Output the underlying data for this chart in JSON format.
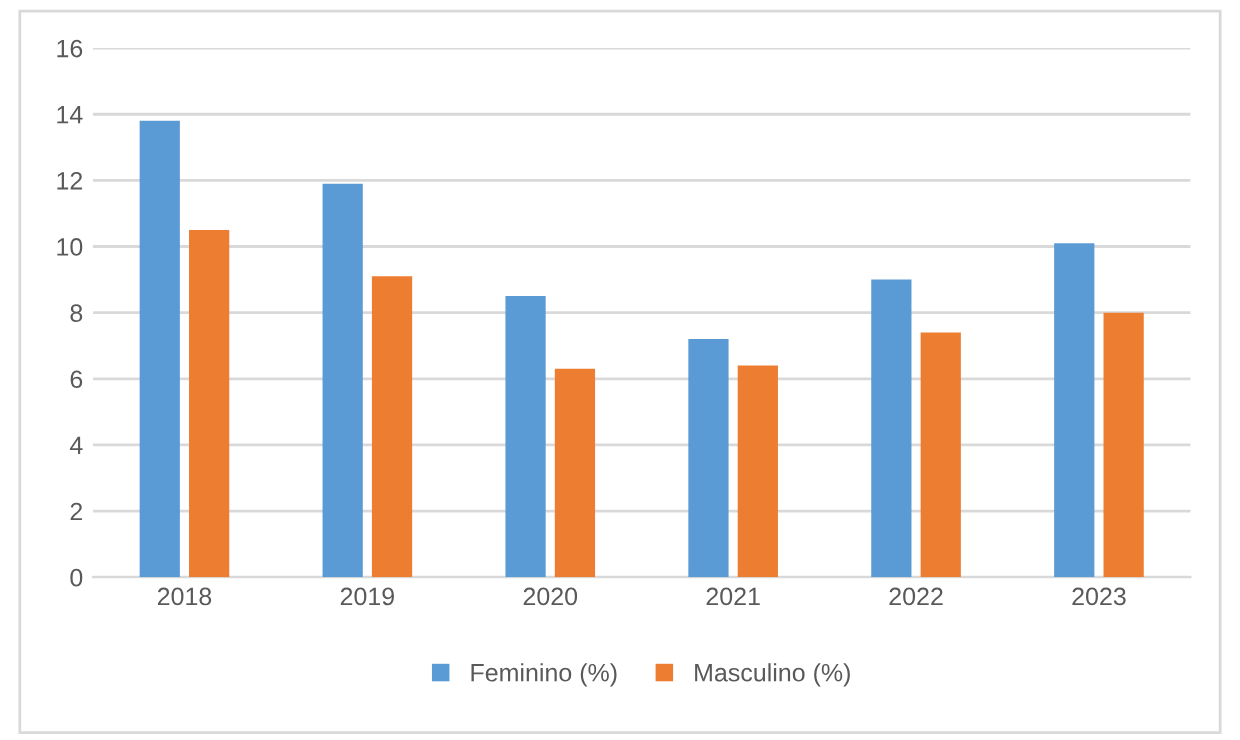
{
  "chart_data": {
    "type": "bar",
    "categories": [
      "2018",
      "2019",
      "2020",
      "2021",
      "2022",
      "2023"
    ],
    "series": [
      {
        "name": "Feminino (%)",
        "color": "#5b9bd5",
        "values": [
          13.8,
          11.9,
          8.5,
          7.2,
          9.0,
          10.1
        ]
      },
      {
        "name": "Masculino (%)",
        "color": "#ed7d31",
        "values": [
          10.5,
          9.1,
          6.3,
          6.4,
          7.4,
          8.0
        ]
      }
    ],
    "ylim": [
      0,
      16
    ],
    "yticks": [
      0,
      2,
      4,
      6,
      8,
      10,
      12,
      14,
      16
    ],
    "grid": "y",
    "legend": "bottom"
  }
}
